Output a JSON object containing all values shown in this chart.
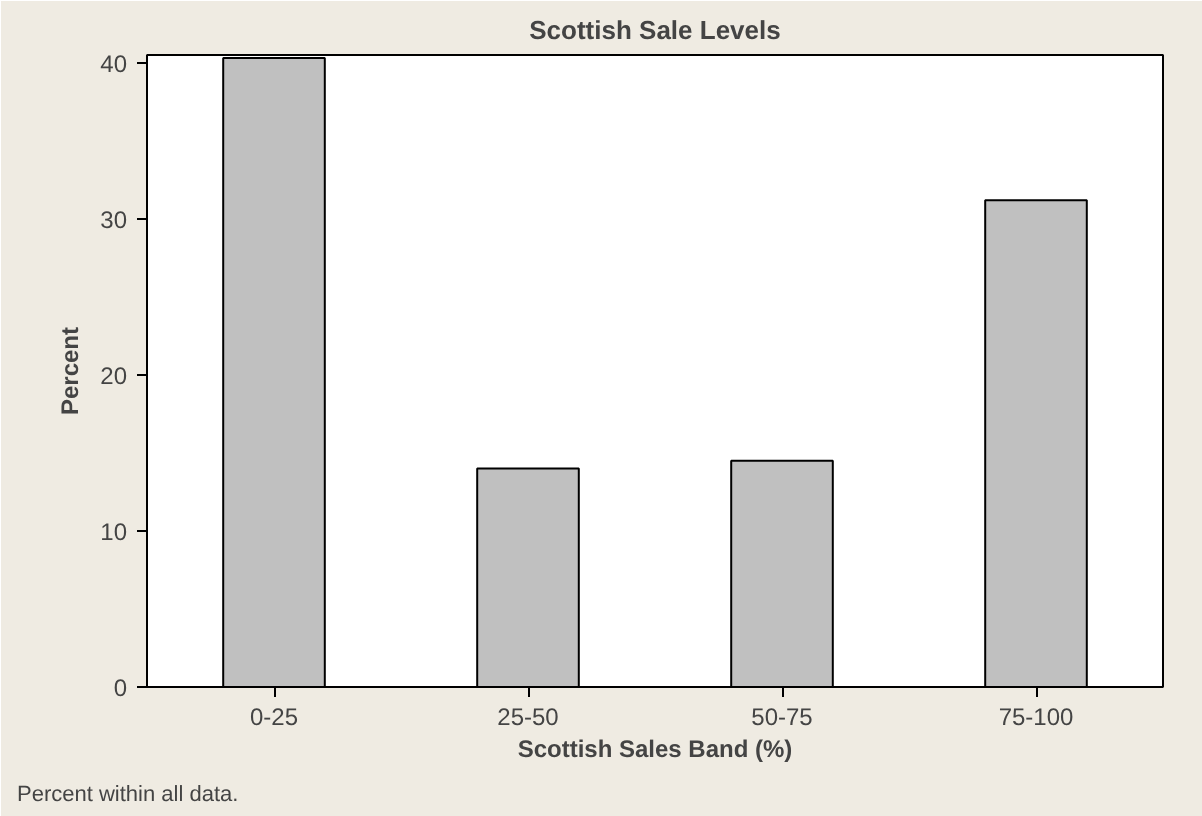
{
  "chart_data": {
    "type": "bar",
    "title": "Scottish Sale Levels",
    "xlabel": "Scottish Sales Band (%)",
    "ylabel": "Percent",
    "categories": [
      "0-25",
      "25-50",
      "50-75",
      "75-100"
    ],
    "values": [
      40.3,
      14.0,
      14.5,
      31.2
    ],
    "color": "#c0c0c0",
    "ylim": [
      0,
      40.5
    ],
    "yticks": [
      0,
      10,
      20,
      30,
      40
    ],
    "grid": false,
    "annotations": [
      "Percent within all data."
    ]
  }
}
